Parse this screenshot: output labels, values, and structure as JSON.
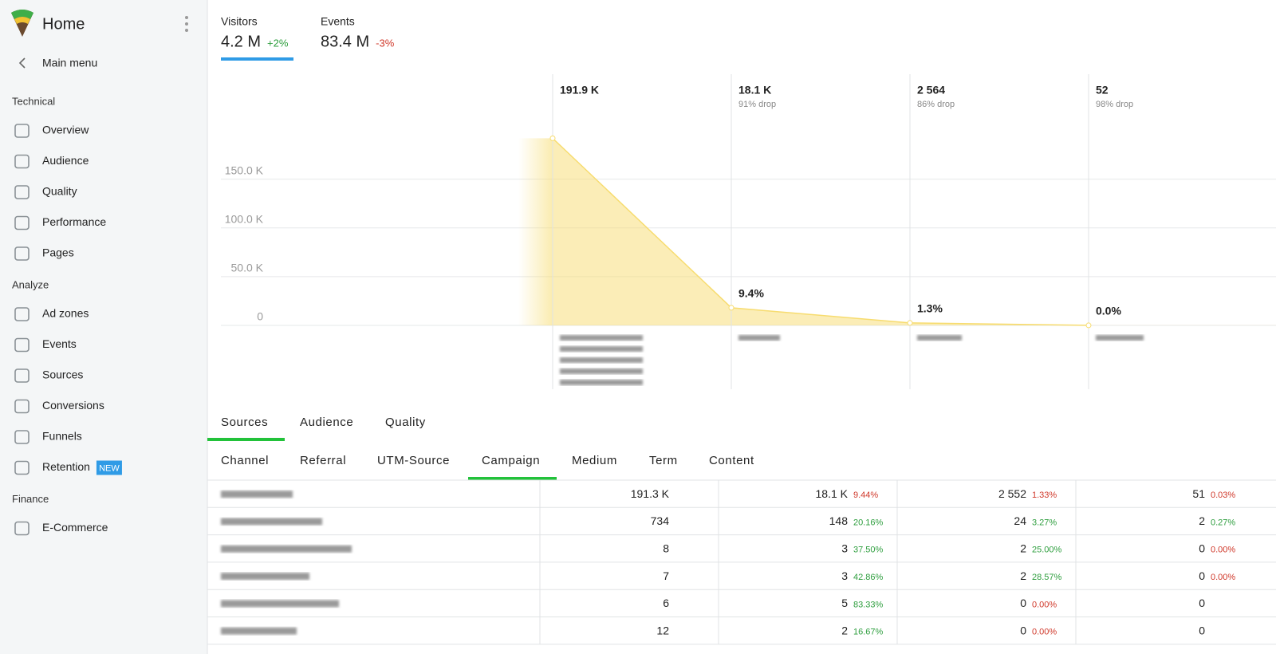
{
  "sidebar": {
    "title": "Home",
    "back": "Main menu",
    "sections": [
      {
        "title": "Technical",
        "items": [
          {
            "label": "Overview"
          },
          {
            "label": "Audience"
          },
          {
            "label": "Quality"
          },
          {
            "label": "Performance"
          },
          {
            "label": "Pages"
          }
        ]
      },
      {
        "title": "Analyze",
        "items": [
          {
            "label": "Ad zones"
          },
          {
            "label": "Events"
          },
          {
            "label": "Sources"
          },
          {
            "label": "Conversions"
          },
          {
            "label": "Funnels"
          },
          {
            "label": "Retention",
            "badge": "NEW"
          }
        ]
      },
      {
        "title": "Finance",
        "items": [
          {
            "label": "E-Commerce"
          }
        ]
      }
    ]
  },
  "kpis": [
    {
      "label": "Visitors",
      "value": "4.2 M",
      "change": "+2%",
      "color": "#2e9e3e"
    },
    {
      "label": "Events",
      "value": "83.4 M",
      "change": "-3%",
      "color": "#d0392b"
    }
  ],
  "funnel": {
    "type": "area",
    "color": "#f7dc6f",
    "ylim": [
      0,
      256000
    ],
    "yticks": [
      0,
      {
        "value": 50000,
        "label": "50.0 K"
      },
      {
        "value": 100000,
        "label": "100.0 K"
      },
      {
        "value": 150000,
        "label": "150.0 K"
      }
    ],
    "steps": [
      {
        "value": 191900,
        "label": "191.9 K"
      },
      {
        "value": 18100,
        "label": "18.1 K",
        "drop": "91% drop",
        "rate": 9.4,
        "rate_label": "9.4%"
      },
      {
        "value": 2564,
        "label": "2 564",
        "drop": "86% drop",
        "rate": 1.3,
        "rate_label": "1.3%"
      },
      {
        "value": 52,
        "label": "52",
        "drop": "98% drop",
        "rate": 0.0,
        "rate_label": "0.0%"
      }
    ]
  },
  "tabs": {
    "items": [
      "Sources",
      "Audience",
      "Quality"
    ],
    "active": 0
  },
  "subtabs": {
    "items": [
      "Channel",
      "Referral",
      "UTM-Source",
      "Campaign",
      "Medium",
      "Term",
      "Content"
    ],
    "active": 3
  },
  "table": {
    "rows": [
      {
        "count": "191.3 K",
        "steps": [
          {
            "count": "18.1 K",
            "pct": "9.44%",
            "color": "#d0392b"
          },
          {
            "count": "2 552",
            "pct": "1.33%",
            "color": "#d0392b"
          },
          {
            "count": "51",
            "pct": "0.03%",
            "color": "#d0392b"
          }
        ]
      },
      {
        "count": "734",
        "steps": [
          {
            "count": "148",
            "pct": "20.16%",
            "color": "#2e9e3e"
          },
          {
            "count": "24",
            "pct": "3.27%",
            "color": "#2e9e3e"
          },
          {
            "count": "2",
            "pct": "0.27%",
            "color": "#2e9e3e"
          }
        ]
      },
      {
        "count": "8",
        "steps": [
          {
            "count": "3",
            "pct": "37.50%",
            "color": "#2e9e3e"
          },
          {
            "count": "2",
            "pct": "25.00%",
            "color": "#2e9e3e"
          },
          {
            "count": "0",
            "pct": "0.00%",
            "color": "#d0392b"
          }
        ]
      },
      {
        "count": "7",
        "steps": [
          {
            "count": "3",
            "pct": "42.86%",
            "color": "#2e9e3e"
          },
          {
            "count": "2",
            "pct": "28.57%",
            "color": "#2e9e3e"
          },
          {
            "count": "0",
            "pct": "0.00%",
            "color": "#d0392b"
          }
        ]
      },
      {
        "count": "6",
        "steps": [
          {
            "count": "5",
            "pct": "83.33%",
            "color": "#2e9e3e"
          },
          {
            "count": "0",
            "pct": "0.00%",
            "color": "#d0392b"
          },
          {
            "count": "0"
          }
        ]
      },
      {
        "count": "12",
        "steps": [
          {
            "count": "2",
            "pct": "16.67%",
            "color": "#2e9e3e"
          },
          {
            "count": "0",
            "pct": "0.00%",
            "color": "#d0392b"
          },
          {
            "count": "0"
          }
        ]
      }
    ]
  }
}
